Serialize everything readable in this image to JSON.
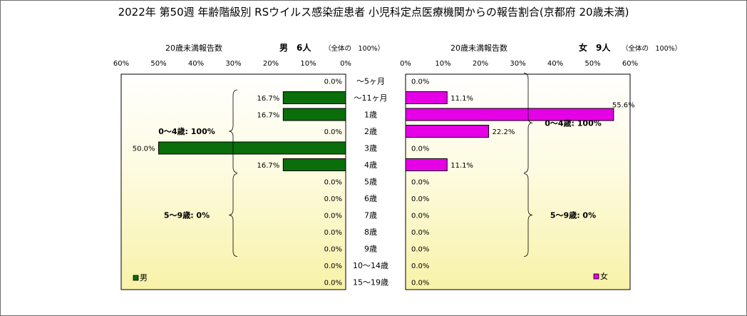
{
  "chart_data": [
    {
      "type": "bar",
      "orientation": "horizontal-reversed",
      "title": "2022年 第50週 年齢階級別 RSウイルス感染症患者 小児科定点医療機関からの報告割合(京都府 20歳未満)",
      "xlabel": "20歳未満報告数",
      "header_label": "男　6人",
      "header_note": "（全体の　100%）",
      "legend": "男",
      "legend_position": "bottom-left",
      "xlim": [
        0,
        60
      ],
      "ticks": [
        "0%",
        "10%",
        "20%",
        "30%",
        "40%",
        "50%",
        "60%"
      ],
      "categories": [
        "～5ヶ月",
        "～11ヶ月",
        "1歳",
        "2歳",
        "3歳",
        "4歳",
        "5歳",
        "6歳",
        "7歳",
        "8歳",
        "9歳",
        "10～14歳",
        "15～19歳"
      ],
      "values": [
        0.0,
        16.7,
        16.7,
        0.0,
        50.0,
        16.7,
        0.0,
        0.0,
        0.0,
        0.0,
        0.0,
        0.0,
        0.0
      ],
      "value_labels": [
        "0.0%",
        "16.7%",
        "16.7%",
        "0.0%",
        "50.0%",
        "16.7%",
        "0.0%",
        "0.0%",
        "0.0%",
        "0.0%",
        "0.0%",
        "0.0%",
        "0.0%"
      ],
      "annotations": [
        {
          "text": "0～4歳: 100%",
          "from": 1,
          "to": 5
        },
        {
          "text": "5～9歳: 0%",
          "from": 6,
          "to": 10
        }
      ],
      "color": "#0a6e0a"
    },
    {
      "type": "bar",
      "orientation": "horizontal",
      "xlabel": "20歳未満報告数",
      "header_label": "女　9人",
      "header_note": "（全体の　100%）",
      "legend": "女",
      "legend_position": "bottom-right",
      "xlim": [
        0,
        60
      ],
      "ticks": [
        "0%",
        "10%",
        "20%",
        "30%",
        "40%",
        "50%",
        "60%"
      ],
      "categories": [
        "～5ヶ月",
        "～11ヶ月",
        "1歳",
        "2歳",
        "3歳",
        "4歳",
        "5歳",
        "6歳",
        "7歳",
        "8歳",
        "9歳",
        "10～14歳",
        "15～19歳"
      ],
      "values": [
        0.0,
        11.1,
        55.6,
        22.2,
        0.0,
        11.1,
        0.0,
        0.0,
        0.0,
        0.0,
        0.0,
        0.0,
        0.0
      ],
      "value_labels": [
        "0.0%",
        "11.1%",
        "55.6%",
        "22.2%",
        "0.0%",
        "11.1%",
        "0.0%",
        "0.0%",
        "0.0%",
        "0.0%",
        "0.0%",
        "0.0%",
        "0.0%"
      ],
      "annotations": [
        {
          "text": "0～4歳: 100%",
          "from": 0,
          "to": 5
        },
        {
          "text": "5～9歳: 0%",
          "from": 6,
          "to": 10
        }
      ],
      "color": "#e600e6"
    }
  ]
}
